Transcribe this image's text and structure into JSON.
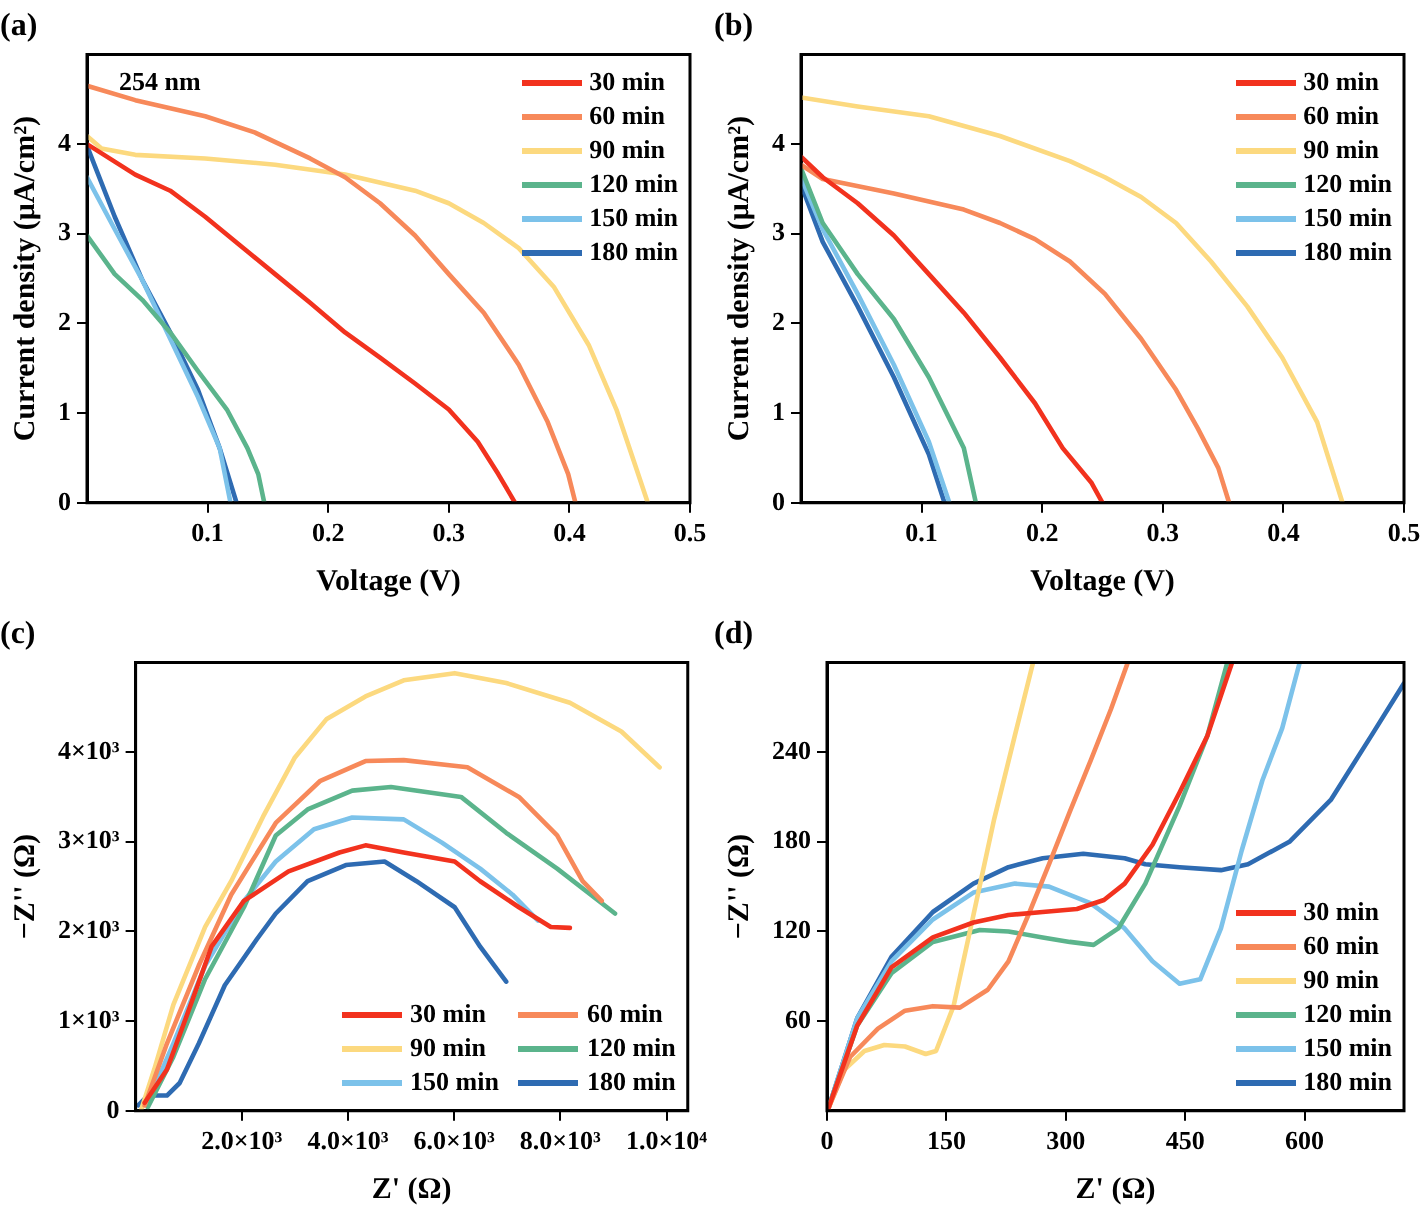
{
  "chart_data": [
    {
      "type": "line",
      "title": "(a)",
      "xlabel": "Voltage (V)",
      "ylabel": "Current density (μA/cm²)",
      "xlim": [
        0,
        0.5
      ],
      "xticks": [
        0.1,
        0.2,
        0.3,
        0.4,
        0.5
      ],
      "ylim": [
        0,
        5
      ],
      "yticks": [
        0,
        1,
        2,
        3,
        4
      ],
      "legend": "top right",
      "annotations": [
        "254 nm"
      ],
      "series": [
        {
          "name": "30 min",
          "color": "#f2321e",
          "x": [
            0,
            0.04,
            0.069,
            0.098,
            0.127,
            0.156,
            0.185,
            0.214,
            0.243,
            0.272,
            0.3,
            0.324,
            0.341,
            0.355
          ],
          "values": [
            4.0,
            3.66,
            3.48,
            3.19,
            2.87,
            2.55,
            2.23,
            1.9,
            1.62,
            1.33,
            1.04,
            0.68,
            0.32,
            0
          ]
        },
        {
          "name": "60 min",
          "color": "#f7895a",
          "x": [
            0,
            0.04,
            0.098,
            0.139,
            0.185,
            0.214,
            0.243,
            0.272,
            0.3,
            0.329,
            0.358,
            0.382,
            0.399,
            0.405
          ],
          "values": [
            4.65,
            4.49,
            4.31,
            4.13,
            3.84,
            3.63,
            3.34,
            2.98,
            2.55,
            2.12,
            1.54,
            0.9,
            0.32,
            0
          ]
        },
        {
          "name": "90 min",
          "color": "#fcd97f",
          "x": [
            0,
            0.012,
            0.04,
            0.098,
            0.156,
            0.214,
            0.272,
            0.3,
            0.329,
            0.358,
            0.387,
            0.416,
            0.439,
            0.457,
            0.465
          ],
          "values": [
            4.09,
            3.95,
            3.88,
            3.84,
            3.77,
            3.66,
            3.48,
            3.34,
            3.12,
            2.84,
            2.41,
            1.76,
            1.04,
            0.32,
            0
          ]
        },
        {
          "name": "120 min",
          "color": "#5bb48c",
          "x": [
            0,
            0.023,
            0.046,
            0.069,
            0.092,
            0.116,
            0.133,
            0.142,
            0.147
          ],
          "values": [
            2.98,
            2.55,
            2.26,
            1.9,
            1.47,
            1.04,
            0.61,
            0.32,
            0
          ]
        },
        {
          "name": "150 min",
          "color": "#7cc2ea",
          "x": [
            0,
            0.023,
            0.046,
            0.069,
            0.092,
            0.11,
            0.119
          ],
          "values": [
            3.63,
            3.05,
            2.48,
            1.83,
            1.18,
            0.61,
            0
          ]
        },
        {
          "name": "180 min",
          "color": "#2e6bb2",
          "x": [
            0,
            0.023,
            0.046,
            0.069,
            0.092,
            0.11,
            0.124
          ],
          "values": [
            3.98,
            3.19,
            2.48,
            1.9,
            1.26,
            0.61,
            0
          ]
        }
      ]
    },
    {
      "type": "line",
      "title": "(b)",
      "xlabel": "Voltage (V)",
      "ylabel": "Current density (μA/cm²)",
      "xlim": [
        0,
        0.5
      ],
      "xticks": [
        0.1,
        0.2,
        0.3,
        0.4,
        0.5
      ],
      "ylim": [
        0,
        5
      ],
      "yticks": [
        0,
        1,
        2,
        3,
        4
      ],
      "legend": "top right",
      "series": [
        {
          "name": "30 min",
          "color": "#f2321e",
          "x": [
            0,
            0.018,
            0.047,
            0.077,
            0.106,
            0.135,
            0.165,
            0.194,
            0.217,
            0.241,
            0.25
          ],
          "values": [
            3.86,
            3.63,
            3.34,
            2.98,
            2.55,
            2.12,
            1.62,
            1.11,
            0.61,
            0.22,
            0
          ]
        },
        {
          "name": "60 min",
          "color": "#f7895a",
          "x": [
            0,
            0.018,
            0.077,
            0.135,
            0.165,
            0.194,
            0.223,
            0.252,
            0.282,
            0.311,
            0.329,
            0.346,
            0.355
          ],
          "values": [
            3.77,
            3.61,
            3.45,
            3.27,
            3.12,
            2.94,
            2.69,
            2.33,
            1.83,
            1.26,
            0.83,
            0.39,
            0
          ]
        },
        {
          "name": "90 min",
          "color": "#fcd97f",
          "x": [
            0,
            0.047,
            0.106,
            0.165,
            0.223,
            0.252,
            0.282,
            0.311,
            0.34,
            0.37,
            0.399,
            0.428,
            0.449
          ],
          "values": [
            4.52,
            4.42,
            4.31,
            4.09,
            3.81,
            3.63,
            3.41,
            3.12,
            2.69,
            2.19,
            1.62,
            0.9,
            0
          ]
        },
        {
          "name": "120 min",
          "color": "#5bb48c",
          "x": [
            0,
            0.018,
            0.047,
            0.077,
            0.106,
            0.135,
            0.145
          ],
          "values": [
            3.73,
            3.12,
            2.55,
            2.05,
            1.4,
            0.61,
            0
          ]
        },
        {
          "name": "150 min",
          "color": "#7cc2ea",
          "x": [
            0,
            0.018,
            0.047,
            0.077,
            0.106,
            0.123
          ],
          "values": [
            3.63,
            3.05,
            2.33,
            1.54,
            0.68,
            0
          ]
        },
        {
          "name": "180 min",
          "color": "#2e6bb2",
          "x": [
            0,
            0.018,
            0.047,
            0.077,
            0.106,
            0.119
          ],
          "values": [
            3.55,
            2.91,
            2.19,
            1.4,
            0.54,
            0
          ]
        }
      ]
    },
    {
      "type": "line",
      "title": "(c)",
      "xlabel": "Z' (Ω)",
      "ylabel": "−Z'' (Ω)",
      "xlim": [
        0,
        10400
      ],
      "xticks": [
        {
          "value": 2000,
          "label": "2.0×10³"
        },
        {
          "value": 4000,
          "label": "4.0×10³"
        },
        {
          "value": 6000,
          "label": "6.0×10³"
        },
        {
          "value": 8000,
          "label": "8.0×10³"
        },
        {
          "value": 10000,
          "label": "1.0×10⁴"
        }
      ],
      "ylim": [
        0,
        5000
      ],
      "yticks": [
        0,
        {
          "value": 1000,
          "label": "1×10³"
        },
        {
          "value": 2000,
          "label": "2×10³"
        },
        {
          "value": 3000,
          "label": "3×10³"
        },
        {
          "value": 4000,
          "label": "4×10³"
        }
      ],
      "legend": "bottom right",
      "series": [
        {
          "name": "30 min",
          "color": "#f2321e",
          "x": [
            170,
            590,
            950,
            1430,
            2040,
            2880,
            3840,
            4330,
            5050,
            6010,
            6490,
            7220,
            7820,
            8180
          ],
          "values": [
            90,
            460,
            1040,
            1830,
            2340,
            2670,
            2880,
            2960,
            2880,
            2780,
            2560,
            2270,
            2050,
            2040
          ]
        },
        {
          "name": "60 min",
          "color": "#f7895a",
          "x": [
            170,
            590,
            1190,
            1800,
            2640,
            3480,
            4330,
            5050,
            6250,
            7220,
            7940,
            8420,
            8780
          ],
          "values": [
            60,
            750,
            1620,
            2410,
            3210,
            3680,
            3900,
            3910,
            3830,
            3500,
            3070,
            2560,
            2340
          ]
        },
        {
          "name": "90 min",
          "color": "#fcd97f",
          "x": [
            110,
            350,
            710,
            1310,
            1800,
            2400,
            3000,
            3600,
            4330,
            5050,
            6010,
            6980,
            8180,
            9150,
            9870
          ],
          "values": [
            20,
            460,
            1180,
            2050,
            2560,
            3280,
            3940,
            4370,
            4620,
            4800,
            4880,
            4770,
            4550,
            4230,
            3830
          ]
        },
        {
          "name": "120 min",
          "color": "#5bb48c",
          "x": [
            230,
            710,
            1310,
            2040,
            2640,
            3240,
            4080,
            4810,
            6130,
            6980,
            7940,
            9030
          ],
          "values": [
            40,
            600,
            1470,
            2270,
            3070,
            3360,
            3570,
            3610,
            3500,
            3100,
            2700,
            2200
          ]
        },
        {
          "name": "150 min",
          "color": "#7cc2ea",
          "x": [
            230,
            710,
            1310,
            2040,
            2640,
            3360,
            4080,
            5050,
            5770,
            6490,
            7100,
            7580
          ],
          "values": [
            90,
            750,
            1620,
            2340,
            2780,
            3140,
            3270,
            3250,
            2990,
            2700,
            2410,
            2120
          ]
        },
        {
          "name": "180 min",
          "color": "#2e6bb2",
          "x": [
            50,
            230,
            590,
            830,
            1190,
            1680,
            2280,
            2640,
            3240,
            3960,
            4690,
            5290,
            6010,
            6490,
            6980
          ],
          "values": [
            60,
            170,
            170,
            310,
            750,
            1400,
            1910,
            2200,
            2560,
            2740,
            2780,
            2560,
            2270,
            1830,
            1440
          ]
        }
      ]
    },
    {
      "type": "line",
      "title": "(d)",
      "xlabel": "Z' (Ω)",
      "ylabel": "−Z'' (Ω)",
      "xlim": [
        0,
        725
      ],
      "xticks": [
        0,
        150,
        300,
        450,
        600
      ],
      "ylim": [
        0,
        300
      ],
      "yticks": [
        60,
        120,
        180,
        240
      ],
      "legend": "bottom right",
      "series": [
        {
          "name": "30 min",
          "color": "#f2321e",
          "x": [
            2,
            38,
            81,
            133,
            184,
            228,
            271,
            314,
            348,
            374,
            409,
            443,
            478,
            509
          ],
          "values": [
            2,
            57,
            96,
            116,
            126,
            131,
            133,
            135,
            141,
            152,
            178,
            213,
            251,
            300
          ]
        },
        {
          "name": "60 min",
          "color": "#f7895a",
          "x": [
            2,
            29,
            64,
            98,
            133,
            167,
            202,
            228,
            253,
            279,
            305,
            331,
            357,
            378
          ],
          "values": [
            2,
            36,
            55,
            67,
            70,
            69,
            81,
            100,
            131,
            165,
            200,
            234,
            269,
            300
          ]
        },
        {
          "name": "90 min",
          "color": "#fcd97f",
          "x": [
            2,
            21,
            47,
            72,
            98,
            124,
            137,
            159,
            184,
            210,
            236,
            259
          ],
          "values": [
            2,
            27,
            40,
            44,
            43,
            38,
            40,
            70,
            131,
            195,
            251,
            300
          ]
        },
        {
          "name": "120 min",
          "color": "#5bb48c",
          "x": [
            2,
            38,
            81,
            133,
            192,
            228,
            271,
            305,
            335,
            366,
            400,
            443,
            478,
            503
          ],
          "values": [
            2,
            57,
            92,
            113,
            121,
            120,
            116,
            113,
            111,
            122,
            152,
            204,
            251,
            300
          ]
        },
        {
          "name": "150 min",
          "color": "#7cc2ea",
          "x": [
            2,
            38,
            81,
            133,
            184,
            236,
            279,
            331,
            374,
            409,
            443,
            469,
            495,
            521,
            547,
            572,
            594
          ],
          "values": [
            2,
            62,
            100,
            128,
            146,
            152,
            150,
            139,
            122,
            100,
            85,
            88,
            122,
            174,
            221,
            256,
            300
          ]
        },
        {
          "name": "180 min",
          "color": "#2e6bb2",
          "x": [
            2,
            38,
            81,
            133,
            184,
            228,
            271,
            322,
            374,
            400,
            443,
            495,
            529,
            581,
            633,
            684,
            725
          ],
          "values": [
            2,
            62,
            103,
            133,
            152,
            163,
            169,
            172,
            169,
            165,
            163,
            161,
            165,
            180,
            208,
            251,
            286
          ]
        }
      ]
    }
  ]
}
